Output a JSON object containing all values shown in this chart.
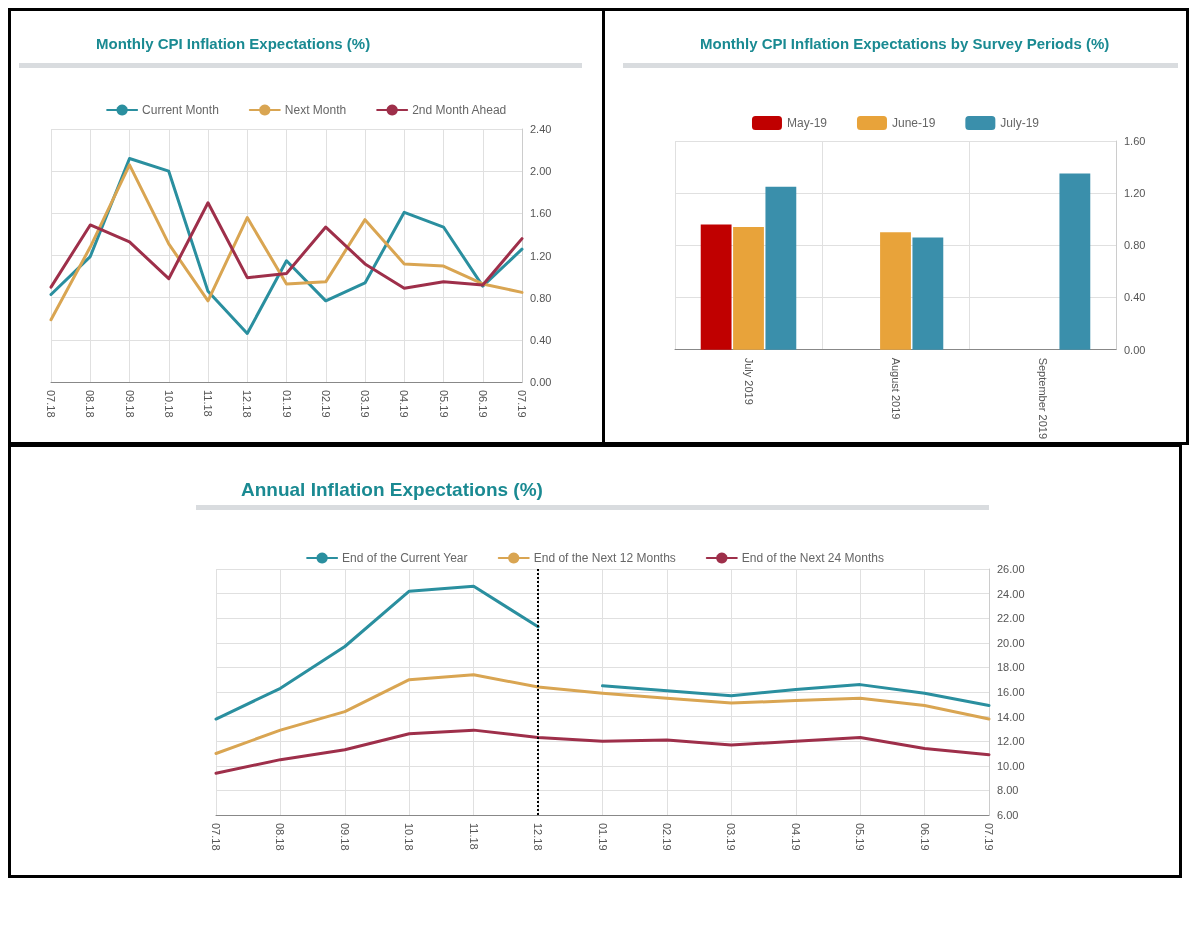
{
  "chart_data": [
    {
      "type": "line",
      "title": "Monthly CPI Inflation Expectations (%)",
      "categories": [
        "07.18",
        "08.18",
        "09.18",
        "10.18",
        "11.18",
        "12.18",
        "01.19",
        "02.19",
        "03.19",
        "04.19",
        "05.19",
        "06.19",
        "07.19"
      ],
      "series": [
        {
          "name": "Current Month",
          "color": "#2a8f9f",
          "values": [
            0.83,
            1.19,
            2.12,
            2.0,
            0.86,
            0.46,
            1.15,
            0.77,
            0.94,
            1.61,
            1.47,
            0.91,
            1.26
          ]
        },
        {
          "name": "Next Month",
          "color": "#d9a552",
          "values": [
            0.59,
            1.28,
            2.06,
            1.31,
            0.77,
            1.56,
            0.93,
            0.95,
            1.54,
            1.12,
            1.1,
            0.93,
            0.85
          ]
        },
        {
          "name": "2nd Month Ahead",
          "color": "#9e2f4a",
          "values": [
            0.9,
            1.49,
            1.33,
            0.98,
            1.7,
            0.99,
            1.03,
            1.47,
            1.12,
            0.89,
            0.95,
            0.92,
            1.36
          ]
        }
      ],
      "ylim": [
        0,
        2.4
      ],
      "yticks": [
        {
          "value": 0,
          "label": "0.00"
        },
        {
          "value": 0.4,
          "label": "0.40"
        },
        {
          "value": 0.8,
          "label": "0.80"
        },
        {
          "value": 1.2,
          "label": "1.20"
        },
        {
          "value": 1.6,
          "label": "1.60"
        },
        {
          "value": 2.0,
          "label": "2.00"
        },
        {
          "value": 2.4,
          "label": "2.40"
        }
      ],
      "grid": true,
      "legend": "top",
      "marker": "none",
      "line_style": "solid"
    },
    {
      "type": "bar",
      "title": "Monthly CPI Inflation Expectations by Survey Periods (%)",
      "categories": [
        "July 2019",
        "August 2019",
        "September 2019"
      ],
      "series": [
        {
          "name": "May-19",
          "color": "#c00000",
          "values": [
            0.96,
            null,
            null
          ]
        },
        {
          "name": "June-19",
          "color": "#e8a33a",
          "values": [
            0.94,
            0.9,
            null
          ]
        },
        {
          "name": "July-19",
          "color": "#3a8fab",
          "values": [
            1.25,
            0.86,
            1.35
          ]
        }
      ],
      "ylim": [
        0,
        1.6
      ],
      "yticks": [
        {
          "value": 0,
          "label": "0.00"
        },
        {
          "value": 0.4,
          "label": "0.40"
        },
        {
          "value": 0.8,
          "label": "0.80"
        },
        {
          "value": 1.2,
          "label": "1.20"
        },
        {
          "value": 1.6,
          "label": "1.60"
        }
      ],
      "grid": true,
      "legend": "top"
    },
    {
      "type": "line",
      "title": "Annual Inflation Expectations (%)",
      "categories": [
        "07.18",
        "08.18",
        "09.18",
        "10.18",
        "11.18",
        "12.18",
        "01.19",
        "02.19",
        "03.19",
        "04.19",
        "05.19",
        "06.19",
        "07.19"
      ],
      "series": [
        {
          "name": "End of the Current Year",
          "color": "#2a8f9f",
          "values": [
            13.8,
            16.3,
            19.7,
            24.2,
            24.6,
            21.3,
            null,
            null,
            null,
            null,
            null,
            null,
            null
          ]
        },
        {
          "color": "#2a8f9f",
          "values": [
            null,
            null,
            null,
            null,
            null,
            null,
            16.5,
            16.1,
            15.7,
            16.2,
            16.6,
            15.9,
            14.9
          ]
        },
        {
          "name": "End of the Next 12 Months",
          "color": "#d9a552",
          "values": [
            11.0,
            12.9,
            14.4,
            17.0,
            17.4,
            16.4,
            15.9,
            15.5,
            15.1,
            15.3,
            15.5,
            14.9,
            13.8
          ]
        },
        {
          "name": "End of the Next 24 Months",
          "color": "#9e2f4a",
          "values": [
            9.4,
            10.5,
            11.3,
            12.6,
            12.9,
            12.3,
            12.0,
            12.1,
            11.7,
            12.0,
            12.3,
            11.4,
            10.9
          ]
        }
      ],
      "ylim": [
        6,
        26
      ],
      "yticks": [
        {
          "value": 6,
          "label": "6.00"
        },
        {
          "value": 8,
          "label": "8.00"
        },
        {
          "value": 10,
          "label": "10.00"
        },
        {
          "value": 12,
          "label": "12.00"
        },
        {
          "value": 14,
          "label": "14.00"
        },
        {
          "value": 16,
          "label": "16.00"
        },
        {
          "value": 18,
          "label": "18.00"
        },
        {
          "value": 20,
          "label": "20.00"
        },
        {
          "value": 22,
          "label": "22.00"
        },
        {
          "value": 24,
          "label": "24.00"
        },
        {
          "value": 26,
          "label": "26.00"
        }
      ],
      "ref_lines": [
        {
          "axis": "x",
          "value": "12.18",
          "color": "#000000",
          "line_style": "dotted"
        }
      ],
      "grid": true,
      "legend": "top",
      "marker": "none",
      "line_style": "solid"
    }
  ]
}
